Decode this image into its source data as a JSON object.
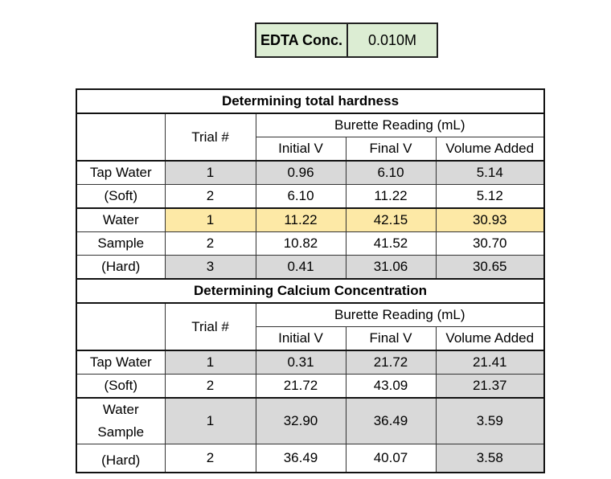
{
  "edta": {
    "label": "EDTA Conc.",
    "value": "0.010M"
  },
  "headers": {
    "trial": "Trial #",
    "burette": "Burette Reading (mL)",
    "initial": "Initial V",
    "final": "Final V",
    "volume": "Volume Added"
  },
  "section1": {
    "title": "Determining total hardness",
    "tap": {
      "label_line1": "Tap Water",
      "label_line2": "(Soft)"
    },
    "sample": {
      "label_line1": "Water",
      "label_line2": "Sample",
      "label_line3": "(Hard)"
    },
    "rows": [
      {
        "trial": "1",
        "initial": "0.96",
        "final": "6.10",
        "volume": "5.14"
      },
      {
        "trial": "2",
        "initial": "6.10",
        "final": "11.22",
        "volume": "5.12"
      },
      {
        "trial": "1",
        "initial": "11.22",
        "final": "42.15",
        "volume": "30.93"
      },
      {
        "trial": "2",
        "initial": "10.82",
        "final": "41.52",
        "volume": "30.70"
      },
      {
        "trial": "3",
        "initial": "0.41",
        "final": "31.06",
        "volume": "30.65"
      }
    ]
  },
  "section2": {
    "title": "Determining Calcium Concentration",
    "tap": {
      "label_line1": "Tap Water",
      "label_line2": "(Soft)"
    },
    "sample": {
      "label_line1": "Water",
      "label_line2": "Sample",
      "label_line3": "(Hard)"
    },
    "rows": [
      {
        "trial": "1",
        "initial": "0.31",
        "final": "21.72",
        "volume": "21.41"
      },
      {
        "trial": "2",
        "initial": "21.72",
        "final": "43.09",
        "volume": "21.37"
      },
      {
        "trial": "1",
        "initial": "32.90",
        "final": "36.49",
        "volume": "3.59"
      },
      {
        "trial": "2",
        "initial": "36.49",
        "final": "40.07",
        "volume": "3.58"
      }
    ]
  },
  "colors": {
    "grey": "#d9d9d9",
    "yellow": "#fde9a6",
    "green": "#dcedd3"
  }
}
